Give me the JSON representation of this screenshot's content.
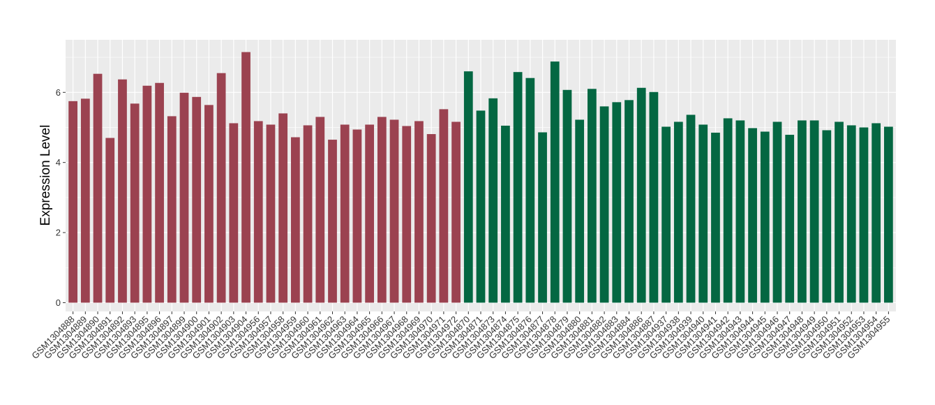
{
  "chart_data": {
    "type": "bar",
    "title": "",
    "xlabel": "",
    "ylabel": "Expression Level",
    "ylim": [
      -0.25,
      7.5
    ],
    "yticks": [
      0,
      2,
      4,
      6
    ],
    "grid": true,
    "background": "#ebebeb",
    "gridline_color": "#ffffff",
    "categories": [
      "GSM1304888",
      "GSM1304889",
      "GSM1304890",
      "GSM1304891",
      "GSM1304892",
      "GSM1304893",
      "GSM1304895",
      "GSM1304896",
      "GSM1304897",
      "GSM1304899",
      "GSM1304900",
      "GSM1304901",
      "GSM1304902",
      "GSM1304903",
      "GSM1304904",
      "GSM1304956",
      "GSM1304957",
      "GSM1304958",
      "GSM1304959",
      "GSM1304960",
      "GSM1304961",
      "GSM1304962",
      "GSM1304963",
      "GSM1304964",
      "GSM1304965",
      "GSM1304966",
      "GSM1304967",
      "GSM1304968",
      "GSM1304969",
      "GSM1304970",
      "GSM1304971",
      "GSM1304972",
      "GSM1304870",
      "GSM1304871",
      "GSM1304873",
      "GSM1304874",
      "GSM1304875",
      "GSM1304876",
      "GSM1304877",
      "GSM1304878",
      "GSM1304879",
      "GSM1304880",
      "GSM1304881",
      "GSM1304882",
      "GSM1304883",
      "GSM1304884",
      "GSM1304886",
      "GSM1304887",
      "GSM1304937",
      "GSM1304938",
      "GSM1304939",
      "GSM1304940",
      "GSM1304941",
      "GSM1304942",
      "GSM1304943",
      "GSM1304944",
      "GSM1304945",
      "GSM1304946",
      "GSM1304947",
      "GSM1304948",
      "GSM1304949",
      "GSM1304950",
      "GSM1304951",
      "GSM1304952",
      "GSM1304953",
      "GSM1304954",
      "GSM1304955"
    ],
    "values": [
      5.75,
      5.82,
      6.53,
      4.7,
      6.37,
      5.68,
      6.19,
      6.27,
      5.32,
      5.99,
      5.87,
      5.64,
      6.55,
      5.12,
      7.15,
      5.18,
      5.08,
      5.4,
      4.72,
      5.06,
      5.3,
      4.65,
      5.08,
      4.94,
      5.08,
      5.3,
      5.22,
      5.04,
      5.18,
      4.81,
      5.52,
      5.16,
      6.6,
      5.48,
      5.83,
      5.05,
      6.58,
      6.41,
      4.86,
      6.88,
      6.07,
      5.22,
      6.1,
      5.6,
      5.72,
      5.78,
      6.13,
      6.01,
      5.02,
      5.16,
      5.36,
      5.08,
      4.85,
      5.26,
      5.2,
      4.98,
      4.88,
      5.16,
      4.79,
      5.2,
      5.2,
      4.92,
      5.16,
      5.06,
      5.0,
      5.12,
      5.02
    ],
    "group_sizes": [
      32,
      35
    ],
    "group_colors": [
      "#9b4250",
      "#046742"
    ]
  }
}
